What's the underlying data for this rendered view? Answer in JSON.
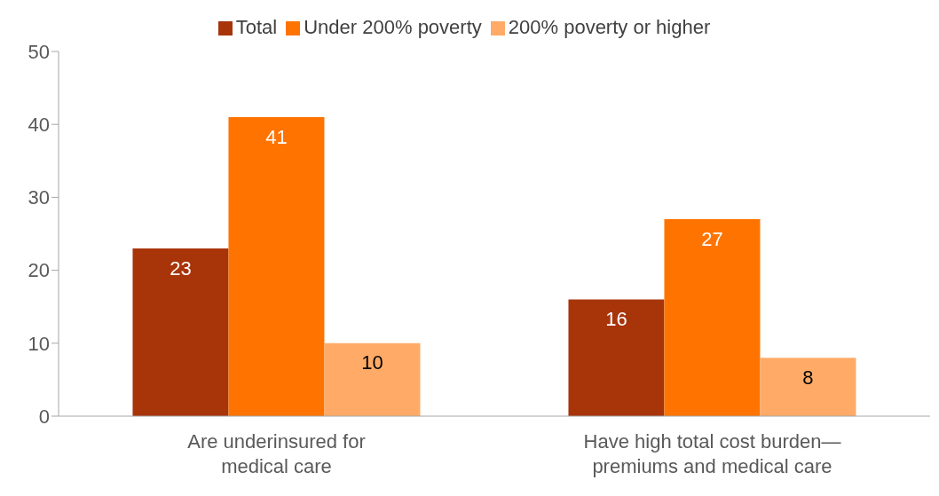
{
  "chart_data": {
    "type": "bar",
    "categories": [
      "Are underinsured for medical care",
      "Have high total cost burden—premiums and medical care"
    ],
    "series": [
      {
        "name": "Total",
        "color": "#a8340a",
        "values": [
          23,
          16
        ]
      },
      {
        "name": "Under 200% poverty",
        "color": "#ff7400",
        "values": [
          41,
          27
        ]
      },
      {
        "name": "200% poverty or higher",
        "color": "#ffab67",
        "values": [
          10,
          8
        ]
      }
    ],
    "ylim": [
      0,
      50
    ],
    "yticks": [
      0,
      10,
      20,
      30,
      40,
      50
    ],
    "grid": false,
    "legend": "top",
    "data_labels": true
  }
}
